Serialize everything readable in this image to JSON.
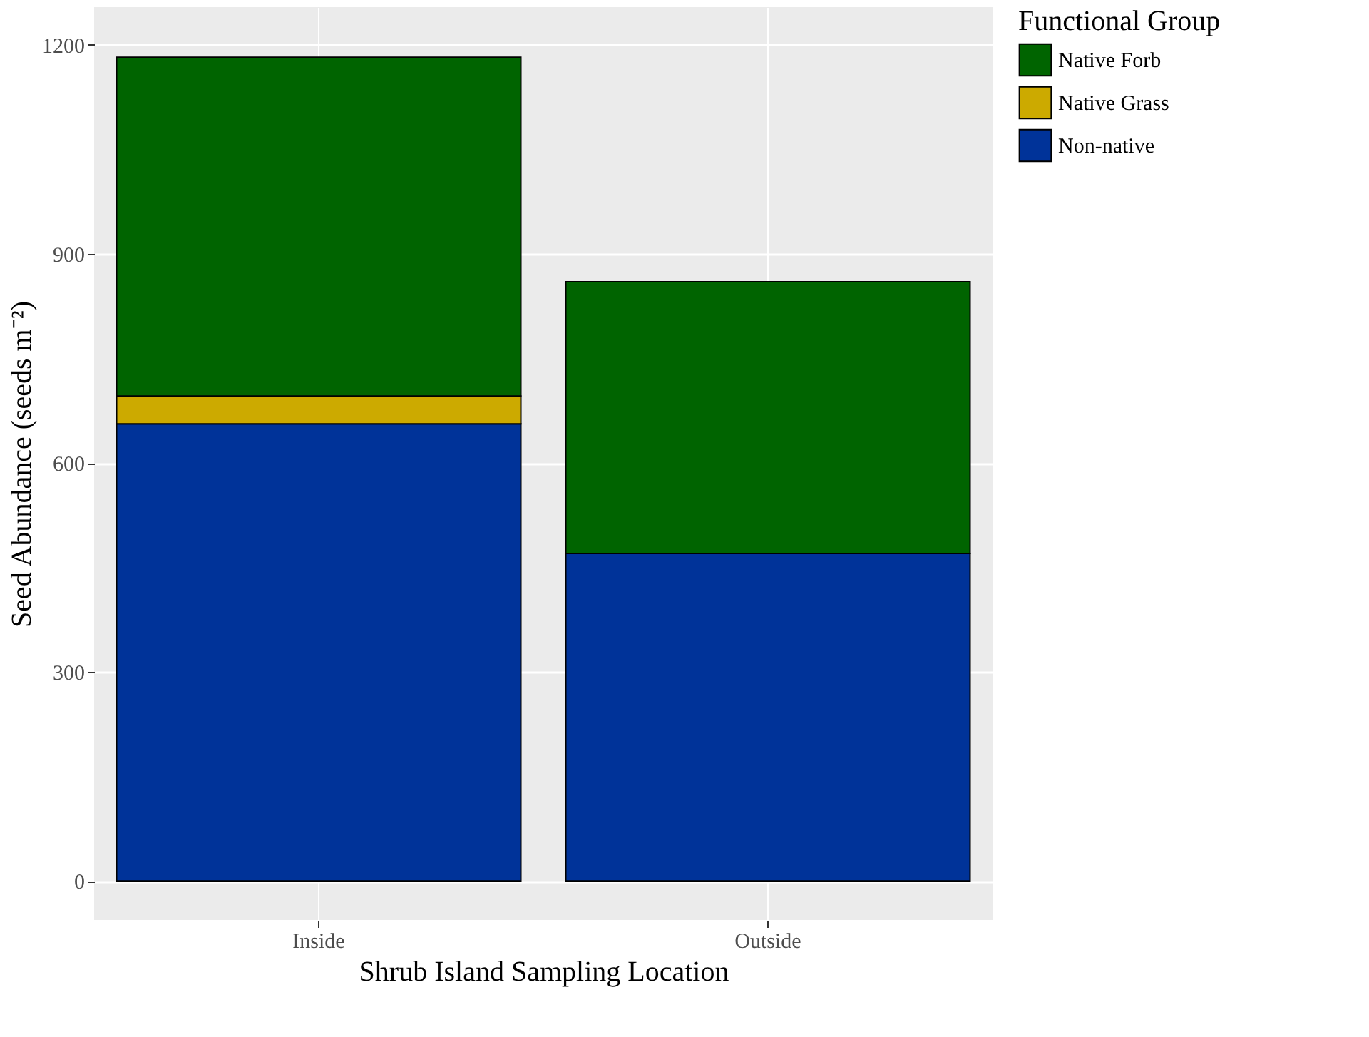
{
  "chart_data": {
    "type": "bar",
    "stacked": true,
    "xlabel": "Shrub Island Sampling Location",
    "ylabel": "Seed Abundance (seeds m⁻²)",
    "legend_title": "Functional Group",
    "legend": "right",
    "grid": true,
    "categories": [
      "Inside",
      "Outside"
    ],
    "series": [
      {
        "name": "Non-native",
        "color": "#003399",
        "values": [
          656,
          470
        ]
      },
      {
        "name": "Native Grass",
        "color": "#ccaa00",
        "values": [
          40,
          0
        ]
      },
      {
        "name": "Native Forb",
        "color": "#006400",
        "values": [
          486,
          390
        ]
      }
    ],
    "ylim": [
      -56,
      1254
    ],
    "yticks": [
      0,
      300,
      600,
      900,
      1200
    ]
  }
}
